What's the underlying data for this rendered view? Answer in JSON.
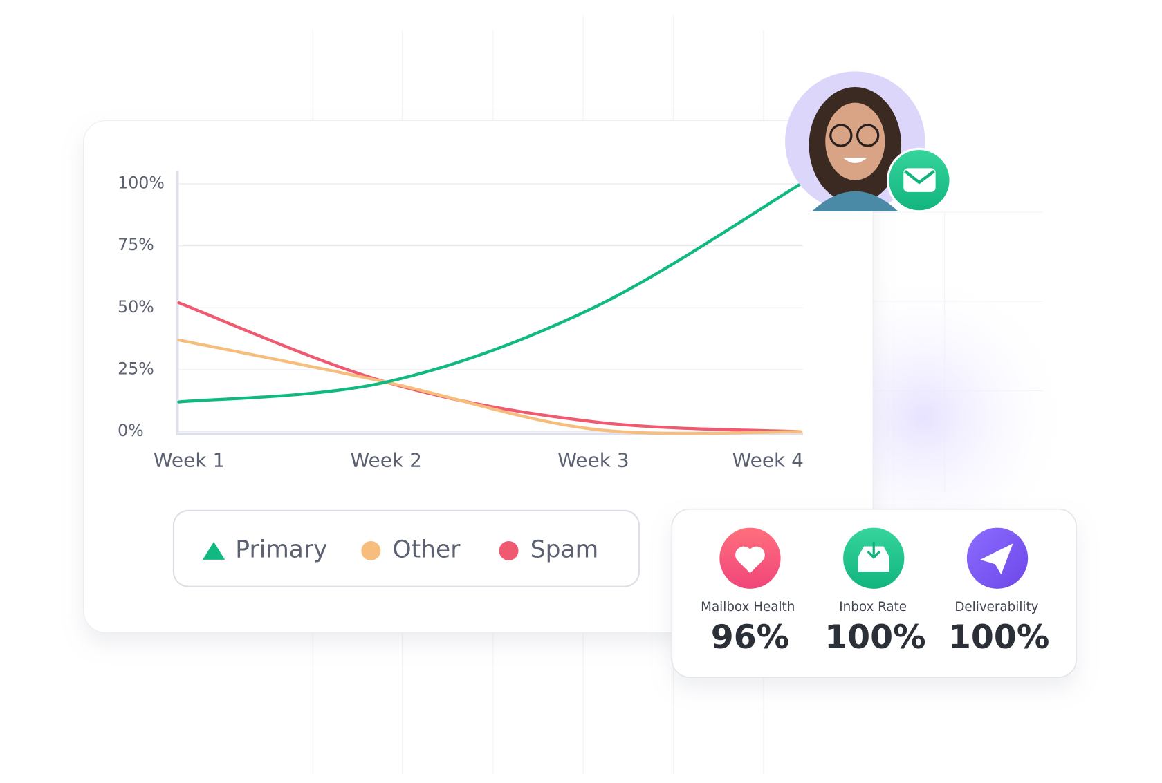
{
  "chart_data": {
    "type": "line",
    "categories": [
      "Week 1",
      "Week 2",
      "Week 3",
      "Week 4"
    ],
    "series": [
      {
        "name": "Primary",
        "color": "#10b981",
        "marker": "triangle",
        "values": [
          12,
          20,
          50,
          100
        ]
      },
      {
        "name": "Other",
        "color": "#f7bd7d",
        "marker": "circle",
        "values": [
          37,
          20,
          1,
          0
        ]
      },
      {
        "name": "Spam",
        "color": "#ef5a70",
        "marker": "circle",
        "values": [
          52,
          20,
          4,
          0
        ]
      }
    ],
    "ylim": [
      0,
      100
    ],
    "yticks": [
      {
        "value": 0,
        "label": "0%"
      },
      {
        "value": 25,
        "label": "25%"
      },
      {
        "value": 50,
        "label": "50%"
      },
      {
        "value": 75,
        "label": "75%"
      },
      {
        "value": 100,
        "label": "100%"
      }
    ],
    "grid": true
  },
  "stats": [
    {
      "label": "Mailbox Health",
      "value": "96%"
    },
    {
      "label": "Inbox Rate",
      "value": "100%"
    },
    {
      "label": "Deliverability",
      "value": "100%"
    }
  ]
}
